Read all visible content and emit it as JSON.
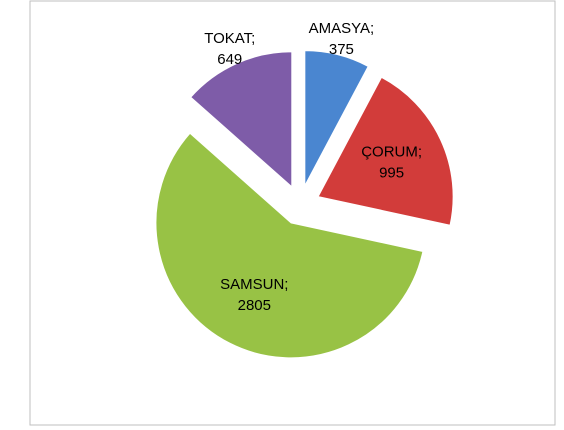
{
  "chart_data": {
    "type": "pie",
    "categories": [
      "AMASYA;",
      "ÇORUM;",
      "SAMSUN;",
      "TOKAT;"
    ],
    "values": [
      375,
      995,
      2805,
      649
    ],
    "colors": [
      "#4a86d0",
      "#d23c3a",
      "#98c245",
      "#7e5ca8"
    ],
    "exploded": true
  }
}
